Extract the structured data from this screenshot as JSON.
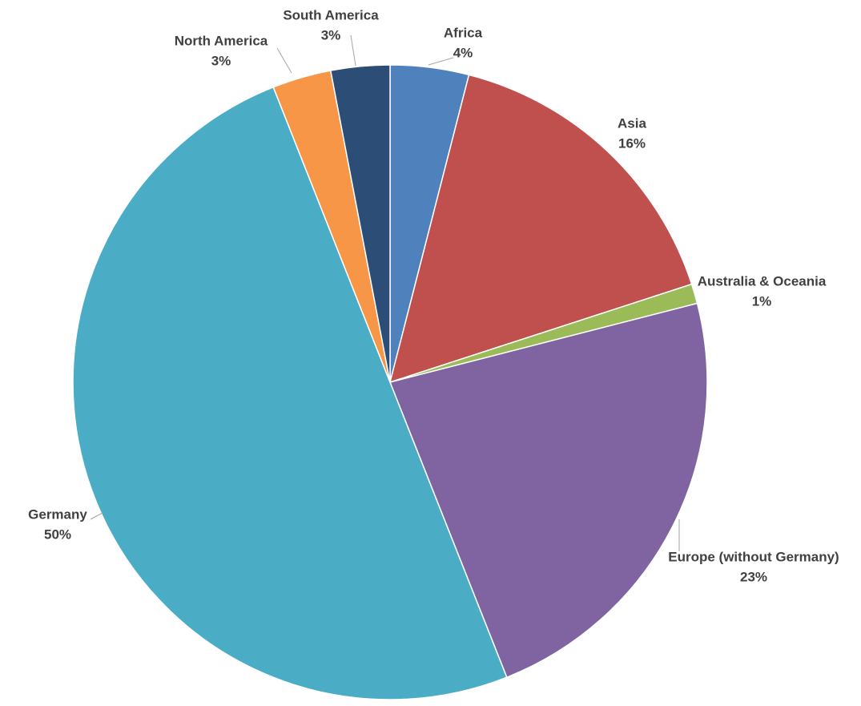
{
  "chart_data": {
    "type": "pie",
    "title": "",
    "start": "12 o'clock",
    "direction": "clockwise",
    "slices": [
      {
        "name": "Africa",
        "value": 4,
        "label": "4%",
        "color": "#4f81bd"
      },
      {
        "name": "Asia",
        "value": 16,
        "label": "16%",
        "color": "#c0504d"
      },
      {
        "name": "Australia & Oceania",
        "value": 1,
        "label": "1%",
        "color": "#9bbb59"
      },
      {
        "name": "Europe (without Germany)",
        "value": 23,
        "label": "23%",
        "color": "#8064a2"
      },
      {
        "name": "Germany",
        "value": 50,
        "label": "50%",
        "color": "#4bacc6"
      },
      {
        "name": "North America",
        "value": 3,
        "label": "3%",
        "color": "#f79646"
      },
      {
        "name": "South America",
        "value": 3,
        "label": "3%",
        "color": "#2c4d75"
      }
    ]
  }
}
